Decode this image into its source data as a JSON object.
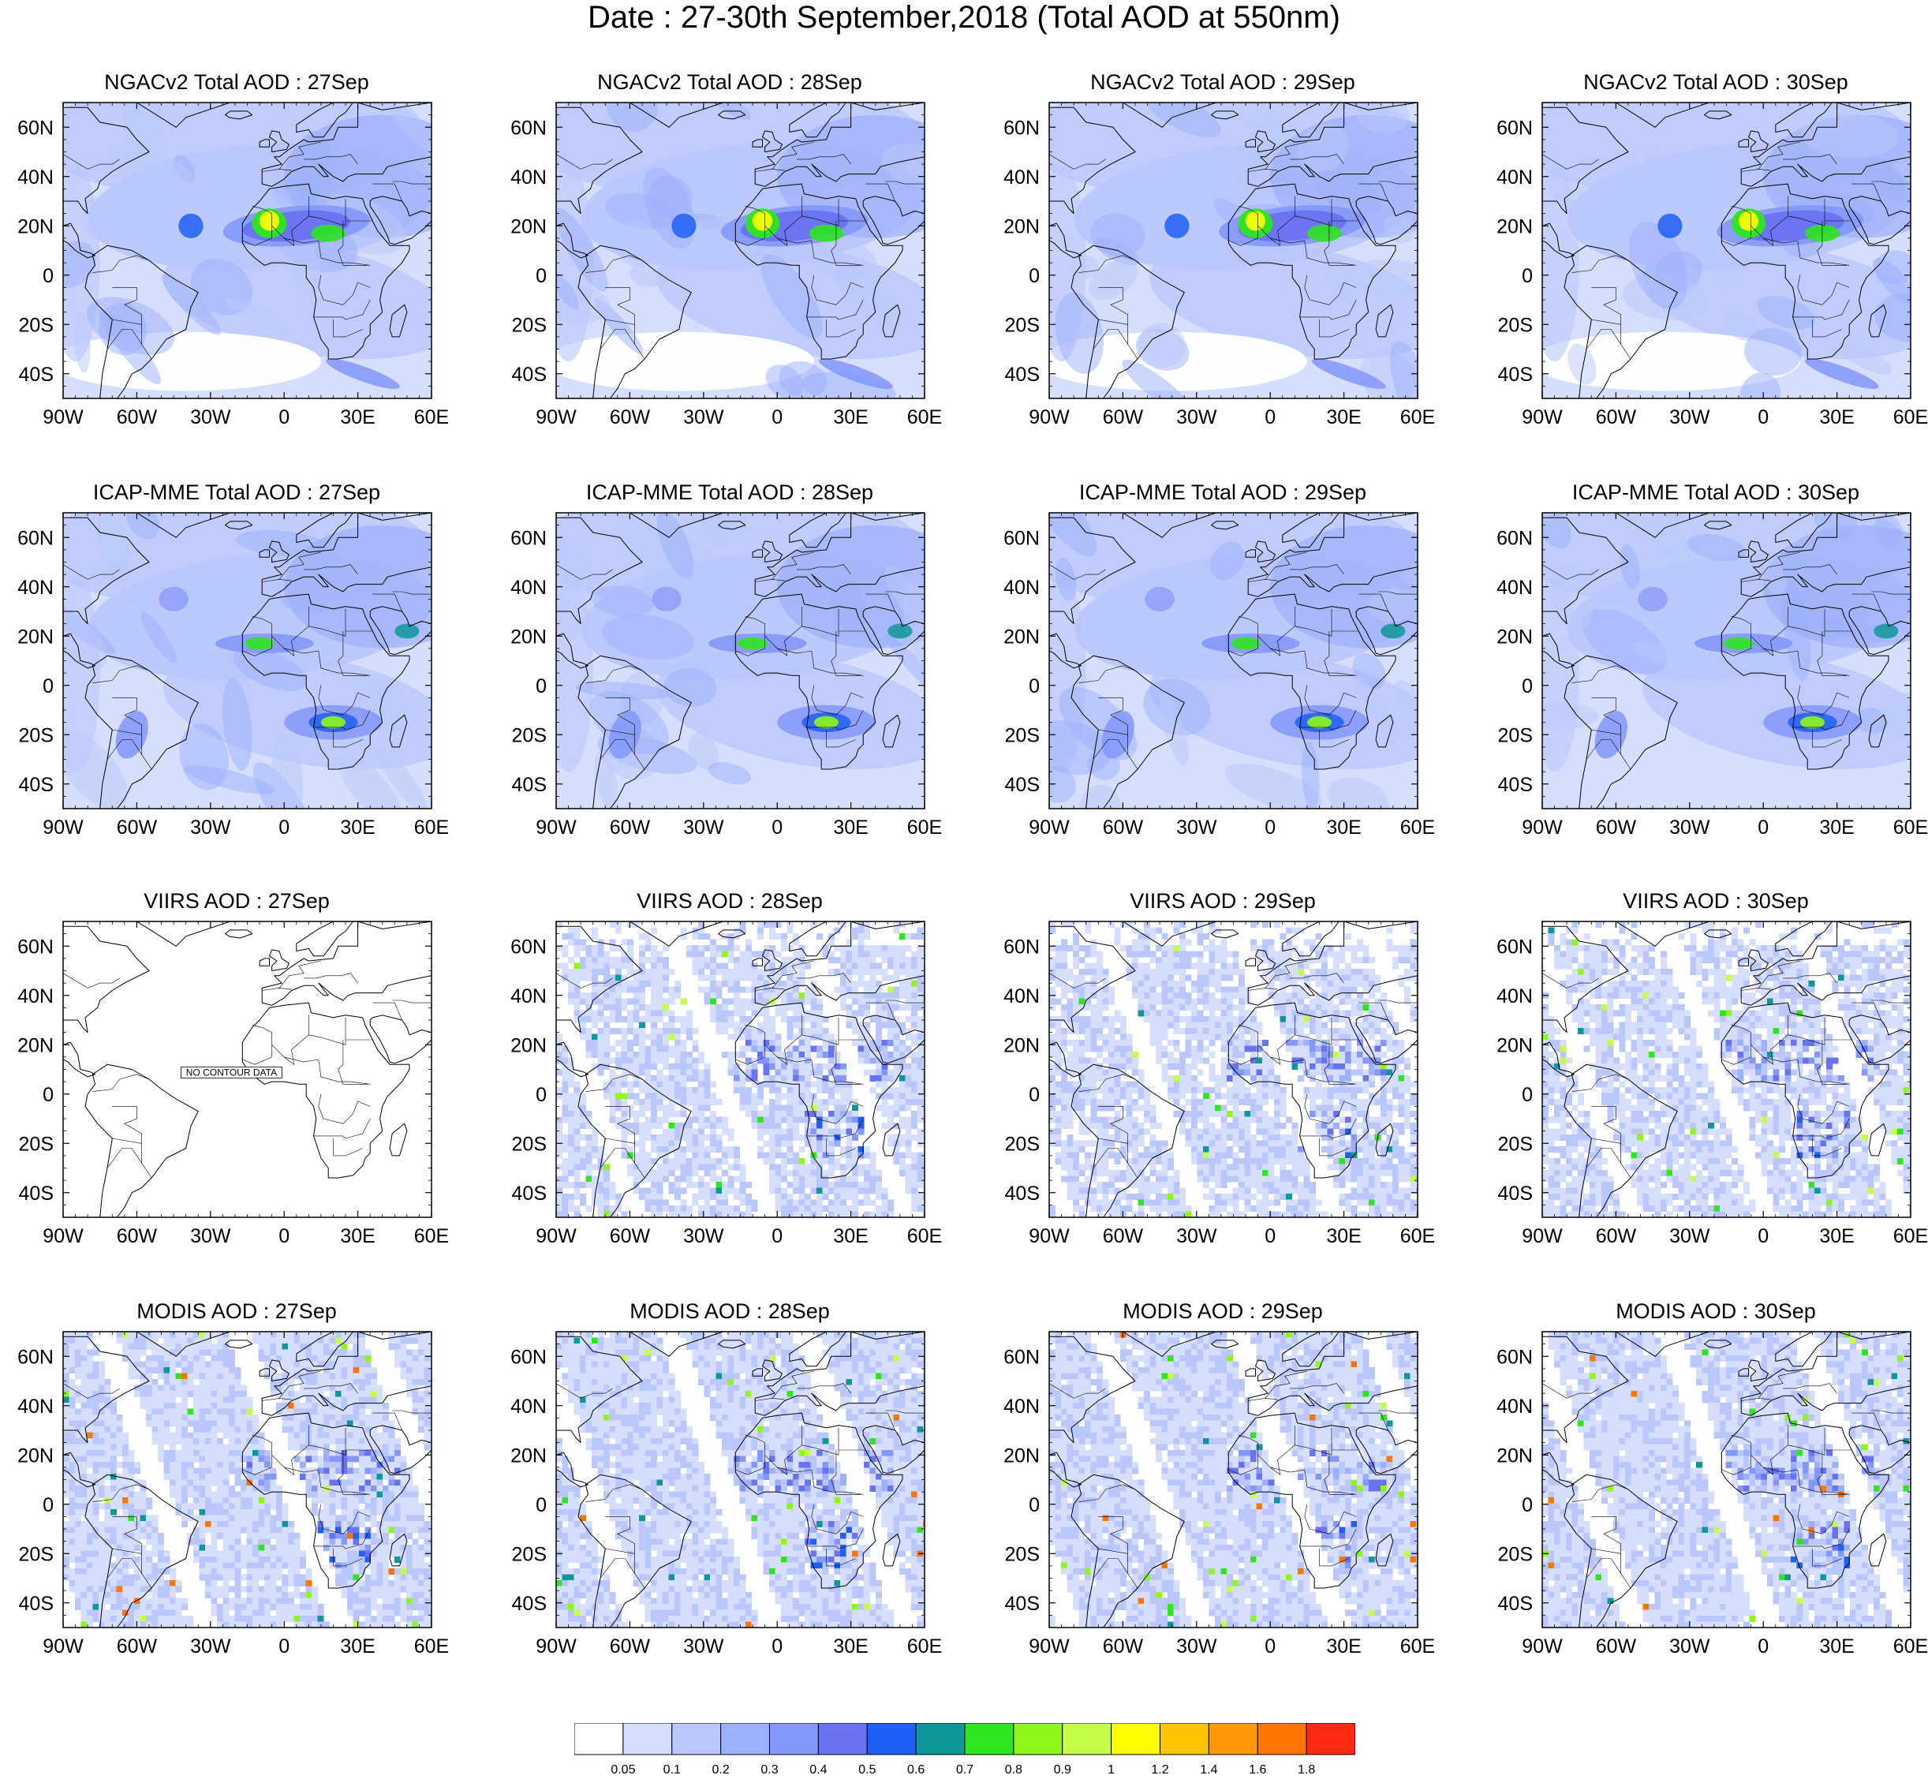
{
  "title": "Date : 27-30th September,2018 (Total AOD at 550nm)",
  "panels": [
    {
      "title": "NGACv2 Total AOD : 27Sep",
      "type": "model",
      "day": 0
    },
    {
      "title": "NGACv2 Total AOD : 28Sep",
      "type": "model",
      "day": 1
    },
    {
      "title": "NGACv2 Total AOD : 29Sep",
      "type": "model",
      "day": 2
    },
    {
      "title": "NGACv2 Total AOD : 30Sep",
      "type": "model",
      "day": 3
    },
    {
      "title": "ICAP-MME Total AOD : 27Sep",
      "type": "model2",
      "day": 0
    },
    {
      "title": "ICAP-MME Total AOD : 28Sep",
      "type": "model2",
      "day": 1
    },
    {
      "title": "ICAP-MME Total AOD : 29Sep",
      "type": "model2",
      "day": 2
    },
    {
      "title": "ICAP-MME Total AOD : 30Sep",
      "type": "model2",
      "day": 3
    },
    {
      "title": "VIIRS AOD : 27Sep",
      "type": "empty",
      "day": 0,
      "nodata": "NO CONTOUR DATA"
    },
    {
      "title": "VIIRS AOD : 28Sep",
      "type": "satellite",
      "day": 1
    },
    {
      "title": "VIIRS AOD : 29Sep",
      "type": "satellite",
      "day": 2
    },
    {
      "title": "VIIRS AOD : 30Sep",
      "type": "satellite",
      "day": 3
    },
    {
      "title": "MODIS AOD : 27Sep",
      "type": "satellite2",
      "day": 0
    },
    {
      "title": "MODIS AOD : 28Sep",
      "type": "satellite2",
      "day": 1
    },
    {
      "title": "MODIS AOD : 29Sep",
      "type": "satellite2",
      "day": 2
    },
    {
      "title": "MODIS AOD : 30Sep",
      "type": "satellite2",
      "day": 3
    }
  ],
  "axes": {
    "lon_labels": [
      "90W",
      "60W",
      "30W",
      "0",
      "30E",
      "60E"
    ],
    "lat_labels": [
      "60N",
      "40N",
      "20N",
      "0",
      "20S",
      "40S"
    ],
    "lon_range": [
      -90,
      60
    ],
    "lat_range": [
      -50,
      70
    ]
  },
  "colorbar": {
    "labels": [
      "0.05",
      "0.1",
      "0.2",
      "0.3",
      "0.4",
      "0.5",
      "0.6",
      "0.7",
      "0.8",
      "0.9",
      "1",
      "1.2",
      "1.4",
      "1.6",
      "1.8"
    ],
    "colors": [
      "#ffffff",
      "#d6defd",
      "#b9c7fc",
      "#9cb0fb",
      "#8497fa",
      "#6973f2",
      "#1f5ff4",
      "#0f9699",
      "#2fe51f",
      "#8ef61a",
      "#c5fe4a",
      "#ffff00",
      "#ffc400",
      "#ff9a06",
      "#ff7503",
      "#ff2a12"
    ]
  }
}
